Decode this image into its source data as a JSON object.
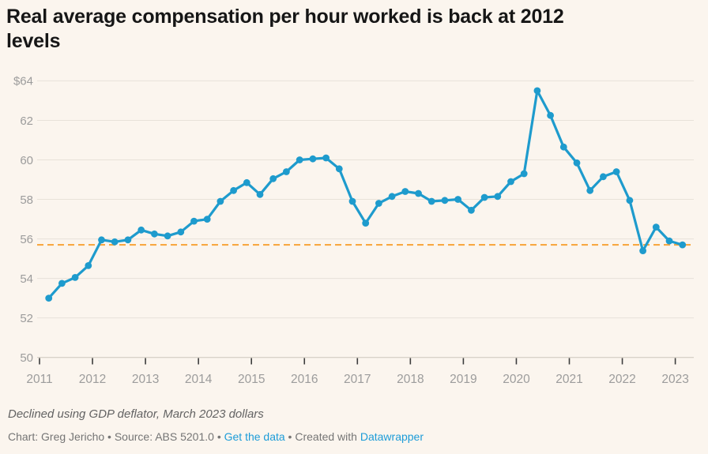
{
  "header": {
    "title": "Real average compensation per hour worked is back at 2012 levels",
    "title_lines": [
      "Real average compensation per hour worked is back at 2012",
      "levels"
    ]
  },
  "footer": {
    "note": "Declined using GDP deflator, March 2023 dollars",
    "byline_prefix": "Chart: Greg Jericho • Source: ABS 5201.0 • ",
    "get_data_label": "Get the data",
    "byline_mid": " • Created with ",
    "datawrapper_label": "Datawrapper"
  },
  "colors": {
    "background": "#fbf5ee",
    "line_blue": "#1e9bcd",
    "reference_orange": "#f8a843",
    "link_blue": "#1d9cd8",
    "axis_label_gray": "#9c9c9c"
  },
  "chart_data": {
    "type": "line",
    "title": "Real average compensation per hour worked is back at 2012 levels",
    "note": "Declined using GDP deflator, March 2023 dollars",
    "frequency": "quarterly",
    "x_start": "2011 Q1",
    "x_end": "2023 Q1",
    "ylim": [
      50,
      64
    ],
    "grid": "horizontal",
    "legend": "none",
    "y_ticks": [
      {
        "value": 64,
        "label": "$64"
      },
      {
        "value": 62,
        "label": "62"
      },
      {
        "value": 60,
        "label": "60"
      },
      {
        "value": 58,
        "label": "58"
      },
      {
        "value": 56,
        "label": "56"
      },
      {
        "value": 54,
        "label": "54"
      },
      {
        "value": 52,
        "label": "52"
      },
      {
        "value": 50,
        "label": "50"
      }
    ],
    "x_ticks": [
      "2011",
      "2012",
      "2013",
      "2014",
      "2015",
      "2016",
      "2017",
      "2018",
      "2019",
      "2020",
      "2021",
      "2022",
      "2023"
    ],
    "series": [
      {
        "name": "Real average compensation per hour worked ($)",
        "color": "#1e9bcd",
        "values": [
          53.0,
          53.75,
          54.05,
          54.65,
          55.95,
          55.85,
          55.95,
          56.45,
          56.25,
          56.15,
          56.35,
          56.9,
          57.0,
          57.9,
          58.45,
          58.85,
          58.25,
          59.05,
          59.4,
          60.0,
          60.05,
          60.1,
          59.55,
          57.9,
          56.8,
          57.8,
          58.15,
          58.4,
          58.3,
          57.9,
          57.95,
          58.0,
          57.45,
          58.1,
          58.15,
          58.9,
          59.3,
          63.5,
          62.25,
          60.65,
          59.85,
          58.45,
          59.15,
          59.4,
          57.95,
          55.4,
          56.6,
          55.9,
          55.7
        ]
      }
    ],
    "reference_line": {
      "value": 55.7,
      "style": "dashed",
      "color": "#f8a843"
    }
  }
}
